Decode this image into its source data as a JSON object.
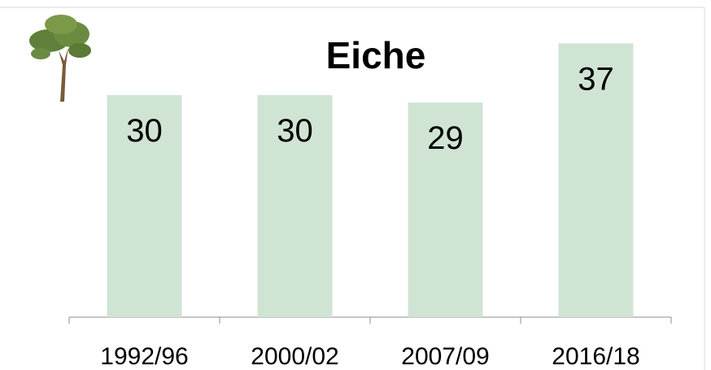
{
  "chart_data": {
    "type": "bar",
    "title": "Eiche",
    "categories": [
      "1992/96",
      "2000/02",
      "2007/09",
      "2016/18"
    ],
    "values": [
      30,
      30,
      29,
      37
    ],
    "color": "#d0e4d4",
    "ylim": [
      0,
      40
    ]
  }
}
